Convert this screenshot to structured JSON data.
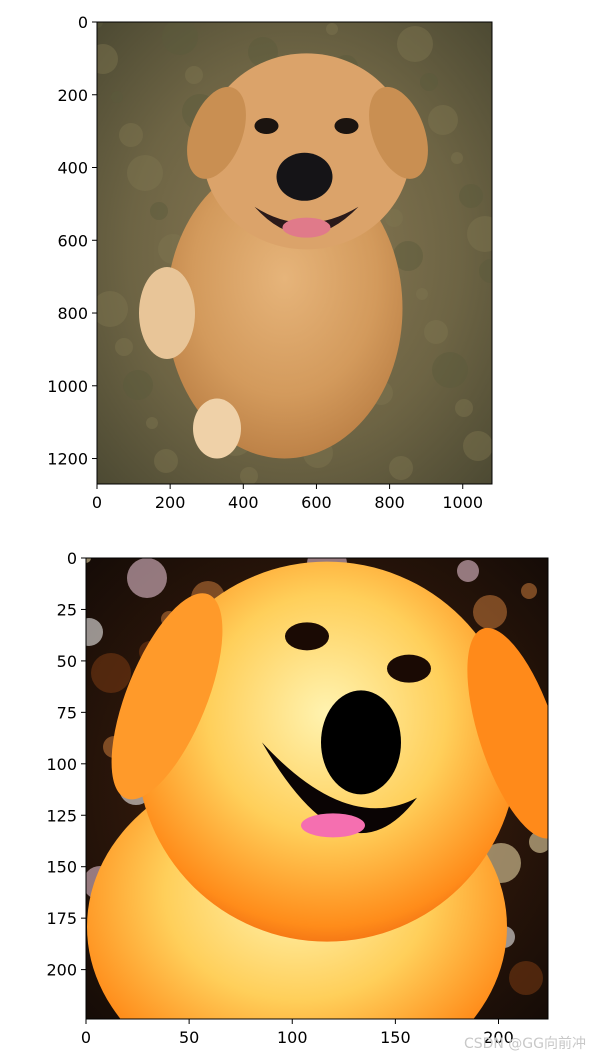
{
  "chart_data": [
    {
      "type": "image",
      "title": "",
      "xlabel": "",
      "ylabel": "",
      "xlim": [
        0,
        1080
      ],
      "ylim": [
        1270,
        0
      ],
      "x_ticks": [
        0,
        200,
        400,
        600,
        800,
        1000
      ],
      "y_ticks": [
        0,
        200,
        400,
        600,
        800,
        1000,
        1200
      ],
      "image": "golden retriever sitting on grass, natural color"
    },
    {
      "type": "image",
      "title": "",
      "xlabel": "",
      "ylabel": "",
      "xlim": [
        0,
        224
      ],
      "ylim": [
        224,
        0
      ],
      "x_ticks": [
        0,
        50,
        100,
        150,
        200
      ],
      "y_ticks": [
        0,
        25,
        50,
        75,
        100,
        125,
        150,
        175,
        200
      ],
      "image": "close-up of golden retriever face, over-saturated normalized colors"
    }
  ],
  "watermark": "CSDN @GG向前冲"
}
